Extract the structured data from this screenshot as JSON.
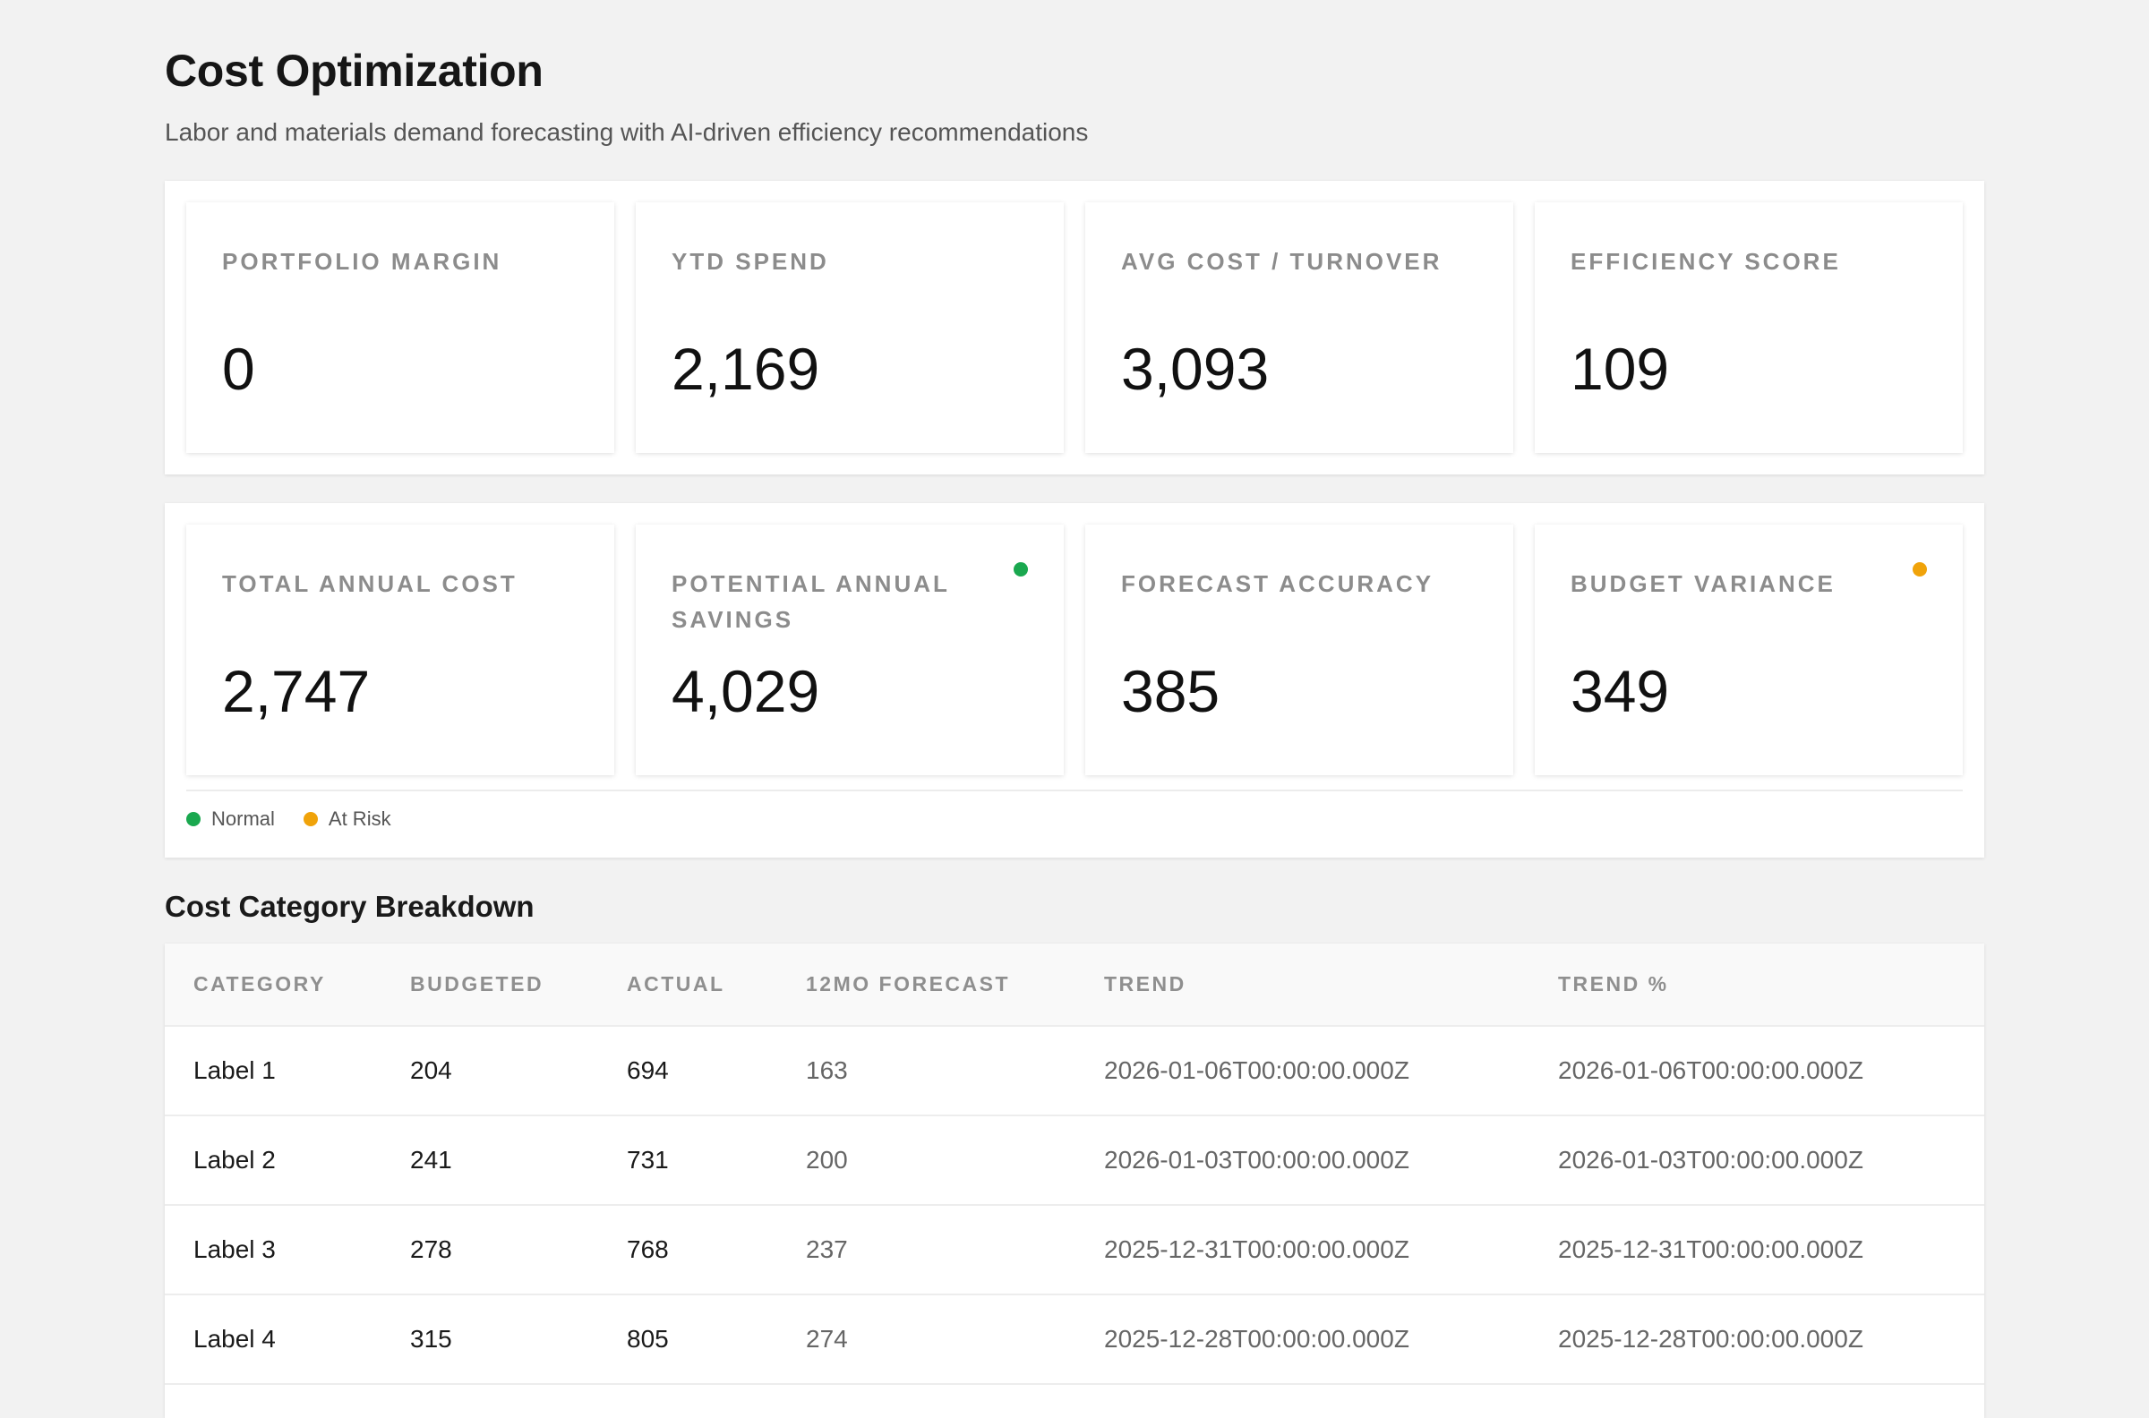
{
  "header": {
    "title": "Cost Optimization",
    "subtitle": "Labor and materials demand forecasting with AI-driven efficiency recommendations"
  },
  "kpi_row_1": [
    {
      "label": "PORTFOLIO MARGIN",
      "value": "0"
    },
    {
      "label": "YTD SPEND",
      "value": "2,169"
    },
    {
      "label": "AVG COST / TURNOVER",
      "value": "3,093"
    },
    {
      "label": "EFFICIENCY SCORE",
      "value": "109"
    }
  ],
  "kpi_row_2": [
    {
      "label": "TOTAL ANNUAL COST",
      "value": "2,747",
      "status": null
    },
    {
      "label": "POTENTIAL ANNUAL SAVINGS",
      "value": "4,029",
      "status": "normal"
    },
    {
      "label": "FORECAST ACCURACY",
      "value": "385",
      "status": null
    },
    {
      "label": "BUDGET VARIANCE",
      "value": "349",
      "status": "at-risk"
    }
  ],
  "legend": {
    "normal": "Normal",
    "at_risk": "At Risk"
  },
  "colors": {
    "normal": "#1aa84f",
    "at_risk": "#f0a30a"
  },
  "table": {
    "title": "Cost Category Breakdown",
    "columns": [
      "CATEGORY",
      "BUDGETED",
      "ACTUAL",
      "12MO FORECAST",
      "TREND",
      "TREND %"
    ],
    "rows": [
      [
        "Label 1",
        "204",
        "694",
        "163",
        "2026-01-06T00:00:00.000Z",
        "2026-01-06T00:00:00.000Z"
      ],
      [
        "Label 2",
        "241",
        "731",
        "200",
        "2026-01-03T00:00:00.000Z",
        "2026-01-03T00:00:00.000Z"
      ],
      [
        "Label 3",
        "278",
        "768",
        "237",
        "2025-12-31T00:00:00.000Z",
        "2025-12-31T00:00:00.000Z"
      ],
      [
        "Label 4",
        "315",
        "805",
        "274",
        "2025-12-28T00:00:00.000Z",
        "2025-12-28T00:00:00.000Z"
      ]
    ]
  }
}
